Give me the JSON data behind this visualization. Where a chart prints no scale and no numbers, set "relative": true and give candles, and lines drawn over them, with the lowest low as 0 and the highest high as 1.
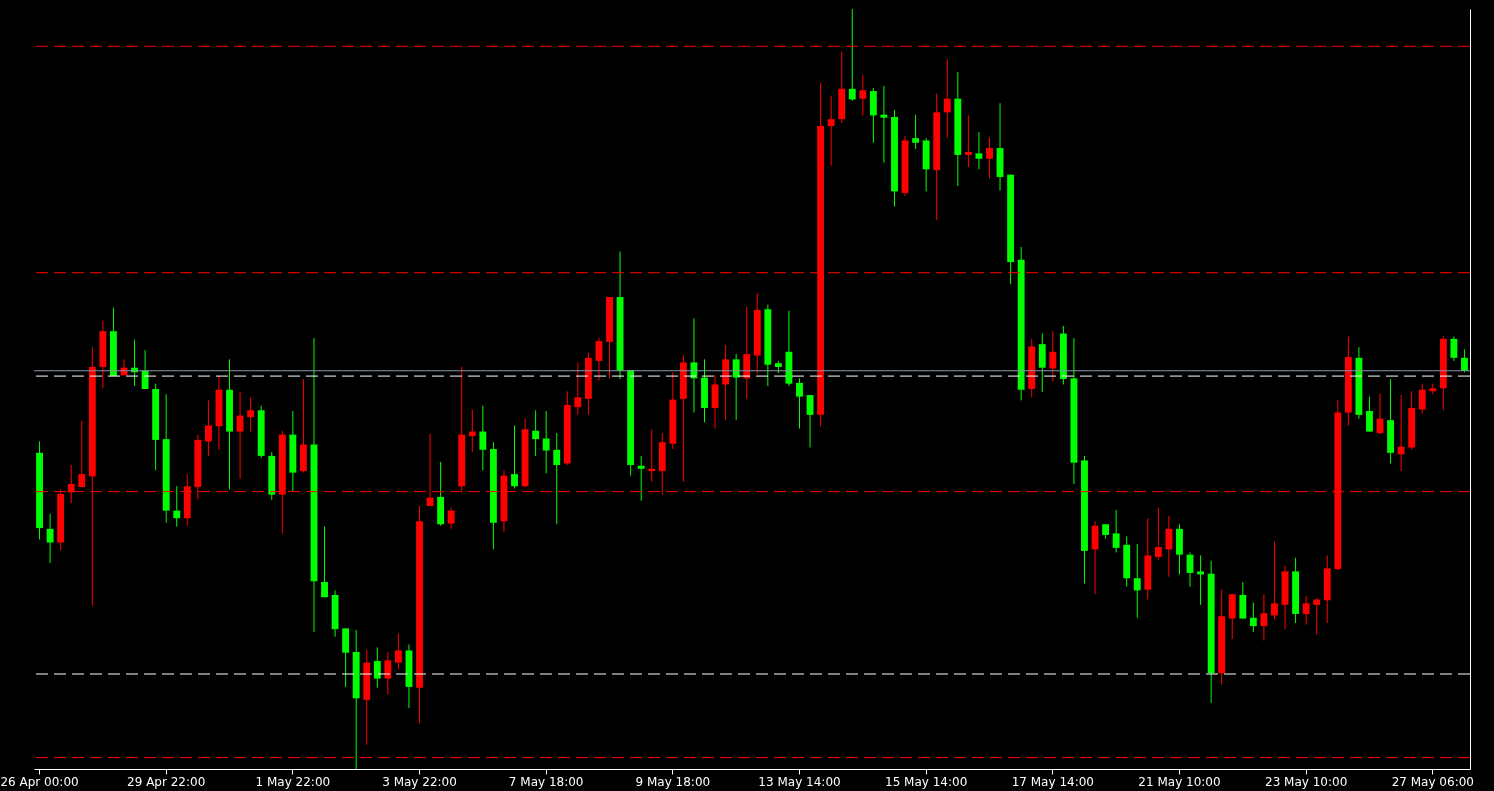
{
  "chart_data": {
    "type": "candlestick",
    "relative": true,
    "grid": false,
    "categories": [
      "26 Apr 00:00",
      null,
      null,
      null,
      null,
      null,
      null,
      null,
      null,
      null,
      null,
      null,
      "29 Apr 22:00",
      null,
      null,
      null,
      null,
      null,
      null,
      null,
      null,
      null,
      null,
      null,
      "1 May 22:00",
      null,
      null,
      null,
      null,
      null,
      null,
      null,
      null,
      null,
      null,
      null,
      "3 May 22:00",
      null,
      null,
      null,
      null,
      null,
      null,
      null,
      null,
      null,
      null,
      null,
      "7 May 18:00",
      null,
      null,
      null,
      null,
      null,
      null,
      null,
      null,
      null,
      null,
      null,
      "9 May 18:00",
      null,
      null,
      null,
      null,
      null,
      null,
      null,
      null,
      null,
      null,
      null,
      "13 May 14:00",
      null,
      null,
      null,
      null,
      null,
      null,
      null,
      null,
      null,
      null,
      null,
      "15 May 14:00",
      null,
      null,
      null,
      null,
      null,
      null,
      null,
      null,
      null,
      null,
      null,
      "17 May 14:00",
      null,
      null,
      null,
      null,
      null,
      null,
      null,
      null,
      null,
      null,
      null,
      "21 May 10:00",
      null,
      null,
      null,
      null,
      null,
      null,
      null,
      null,
      null,
      null,
      null,
      "23 May 10:00",
      null,
      null,
      null,
      null,
      null,
      null,
      null,
      null,
      null,
      null,
      null,
      "27 May 06:00",
      null,
      null,
      null
    ],
    "ohlc": [
      [
        0.416,
        0.431,
        0.302,
        0.317
      ],
      [
        0.316,
        0.336,
        0.271,
        0.298
      ],
      [
        0.298,
        0.368,
        0.288,
        0.362
      ],
      [
        0.364,
        0.4,
        0.35,
        0.375
      ],
      [
        0.371,
        0.458,
        0.371,
        0.388
      ],
      [
        0.385,
        0.555,
        0.215,
        0.529
      ],
      [
        0.529,
        0.59,
        0.501,
        0.576
      ],
      [
        0.576,
        0.607,
        0.517,
        0.517
      ],
      [
        0.518,
        0.539,
        0.518,
        0.528
      ],
      [
        0.528,
        0.565,
        0.504,
        0.522
      ],
      [
        0.524,
        0.551,
        0.5,
        0.5
      ],
      [
        0.5,
        0.507,
        0.393,
        0.433
      ],
      [
        0.434,
        0.493,
        0.324,
        0.34
      ],
      [
        0.34,
        0.372,
        0.319,
        0.33
      ],
      [
        0.33,
        0.388,
        0.32,
        0.372
      ],
      [
        0.371,
        0.44,
        0.355,
        0.433
      ],
      [
        0.431,
        0.485,
        0.412,
        0.452
      ],
      [
        0.451,
        0.517,
        0.42,
        0.499
      ],
      [
        0.499,
        0.539,
        0.368,
        0.444
      ],
      [
        0.444,
        0.496,
        0.382,
        0.465
      ],
      [
        0.463,
        0.489,
        0.444,
        0.472
      ],
      [
        0.472,
        0.478,
        0.409,
        0.412
      ],
      [
        0.412,
        0.417,
        0.354,
        0.361
      ],
      [
        0.361,
        0.445,
        0.31,
        0.44
      ],
      [
        0.44,
        0.471,
        0.365,
        0.39
      ],
      [
        0.392,
        0.513,
        0.39,
        0.427
      ],
      [
        0.427,
        0.567,
        0.18,
        0.247
      ],
      [
        0.246,
        0.319,
        0.226,
        0.226
      ],
      [
        0.229,
        0.235,
        0.174,
        0.184
      ],
      [
        0.185,
        0.185,
        0.108,
        0.153
      ],
      [
        0.154,
        0.183,
        0.0,
        0.093
      ],
      [
        0.091,
        0.157,
        0.032,
        0.14
      ],
      [
        0.142,
        0.16,
        0.107,
        0.119
      ],
      [
        0.119,
        0.154,
        0.098,
        0.143
      ],
      [
        0.14,
        0.178,
        0.131,
        0.156
      ],
      [
        0.156,
        0.164,
        0.08,
        0.108
      ],
      [
        0.107,
        0.346,
        0.06,
        0.326
      ],
      [
        0.346,
        0.441,
        0.346,
        0.357
      ],
      [
        0.358,
        0.404,
        0.32,
        0.322
      ],
      [
        0.323,
        0.344,
        0.316,
        0.34
      ],
      [
        0.372,
        0.529,
        0.365,
        0.44
      ],
      [
        0.438,
        0.473,
        0.417,
        0.444
      ],
      [
        0.444,
        0.478,
        0.393,
        0.42
      ],
      [
        0.421,
        0.43,
        0.289,
        0.324
      ],
      [
        0.326,
        0.393,
        0.312,
        0.386
      ],
      [
        0.388,
        0.452,
        0.369,
        0.372
      ],
      [
        0.372,
        0.461,
        0.371,
        0.447
      ],
      [
        0.445,
        0.472,
        0.412,
        0.434
      ],
      [
        0.435,
        0.471,
        0.389,
        0.419
      ],
      [
        0.42,
        0.442,
        0.322,
        0.4
      ],
      [
        0.402,
        0.497,
        0.4,
        0.479
      ],
      [
        0.476,
        0.535,
        0.466,
        0.489
      ],
      [
        0.487,
        0.548,
        0.466,
        0.541
      ],
      [
        0.537,
        0.567,
        0.511,
        0.563
      ],
      [
        0.562,
        0.621,
        0.514,
        0.621
      ],
      [
        0.621,
        0.681,
        0.513,
        0.524
      ],
      [
        0.525,
        0.525,
        0.386,
        0.4
      ],
      [
        0.399,
        0.412,
        0.353,
        0.395
      ],
      [
        0.392,
        0.447,
        0.378,
        0.395
      ],
      [
        0.392,
        0.442,
        0.361,
        0.43
      ],
      [
        0.428,
        0.522,
        0.421,
        0.486
      ],
      [
        0.487,
        0.545,
        0.378,
        0.535
      ],
      [
        0.535,
        0.593,
        0.469,
        0.514
      ],
      [
        0.515,
        0.539,
        0.456,
        0.475
      ],
      [
        0.475,
        0.518,
        0.448,
        0.506
      ],
      [
        0.506,
        0.558,
        0.459,
        0.539
      ],
      [
        0.539,
        0.546,
        0.459,
        0.515
      ],
      [
        0.514,
        0.608,
        0.487,
        0.546
      ],
      [
        0.544,
        0.626,
        0.52,
        0.604
      ],
      [
        0.605,
        0.611,
        0.504,
        0.532
      ],
      [
        0.534,
        0.537,
        0.521,
        0.529
      ],
      [
        0.549,
        0.603,
        0.504,
        0.507
      ],
      [
        0.508,
        0.514,
        0.448,
        0.49
      ],
      [
        0.492,
        0.492,
        0.423,
        0.466
      ],
      [
        0.466,
        0.903,
        0.451,
        0.846
      ],
      [
        0.846,
        0.886,
        0.794,
        0.855
      ],
      [
        0.855,
        0.944,
        0.85,
        0.895
      ],
      [
        0.895,
        1.0,
        0.879,
        0.881
      ],
      [
        0.882,
        0.913,
        0.86,
        0.893
      ],
      [
        0.892,
        0.896,
        0.824,
        0.86
      ],
      [
        0.861,
        0.899,
        0.798,
        0.857
      ],
      [
        0.858,
        0.867,
        0.74,
        0.76
      ],
      [
        0.758,
        0.833,
        0.754,
        0.827
      ],
      [
        0.83,
        0.861,
        0.816,
        0.824
      ],
      [
        0.827,
        0.83,
        0.76,
        0.789
      ],
      [
        0.788,
        0.889,
        0.722,
        0.864
      ],
      [
        0.864,
        0.934,
        0.83,
        0.882
      ],
      [
        0.882,
        0.917,
        0.767,
        0.808
      ],
      [
        0.808,
        0.86,
        0.792,
        0.812
      ],
      [
        0.81,
        0.838,
        0.789,
        0.803
      ],
      [
        0.803,
        0.831,
        0.777,
        0.817
      ],
      [
        0.817,
        0.876,
        0.761,
        0.779
      ],
      [
        0.782,
        0.782,
        0.638,
        0.667
      ],
      [
        0.67,
        0.687,
        0.485,
        0.499
      ],
      [
        0.5,
        0.566,
        0.489,
        0.556
      ],
      [
        0.559,
        0.573,
        0.496,
        0.528
      ],
      [
        0.527,
        0.576,
        0.51,
        0.549
      ],
      [
        0.573,
        0.583,
        0.506,
        0.513
      ],
      [
        0.514,
        0.567,
        0.375,
        0.403
      ],
      [
        0.406,
        0.412,
        0.244,
        0.287
      ],
      [
        0.289,
        0.326,
        0.23,
        0.32
      ],
      [
        0.322,
        0.322,
        0.303,
        0.308
      ],
      [
        0.31,
        0.341,
        0.285,
        0.291
      ],
      [
        0.295,
        0.306,
        0.24,
        0.251
      ],
      [
        0.251,
        0.296,
        0.199,
        0.235
      ],
      [
        0.236,
        0.33,
        0.223,
        0.281
      ],
      [
        0.279,
        0.344,
        0.275,
        0.292
      ],
      [
        0.289,
        0.333,
        0.253,
        0.316
      ],
      [
        0.316,
        0.322,
        0.256,
        0.282
      ],
      [
        0.282,
        0.285,
        0.24,
        0.258
      ],
      [
        0.26,
        0.281,
        0.216,
        0.256
      ],
      [
        0.257,
        0.274,
        0.087,
        0.126
      ],
      [
        0.126,
        0.236,
        0.111,
        0.201
      ],
      [
        0.198,
        0.23,
        0.171,
        0.23
      ],
      [
        0.229,
        0.246,
        0.198,
        0.198
      ],
      [
        0.199,
        0.219,
        0.18,
        0.188
      ],
      [
        0.188,
        0.23,
        0.169,
        0.205
      ],
      [
        0.202,
        0.299,
        0.197,
        0.218
      ],
      [
        0.216,
        0.268,
        0.184,
        0.26
      ],
      [
        0.26,
        0.278,
        0.192,
        0.204
      ],
      [
        0.204,
        0.228,
        0.19,
        0.218
      ],
      [
        0.216,
        0.225,
        0.177,
        0.223
      ],
      [
        0.222,
        0.281,
        0.192,
        0.264
      ],
      [
        0.263,
        0.485,
        0.261,
        0.469
      ],
      [
        0.469,
        0.569,
        0.452,
        0.542
      ],
      [
        0.541,
        0.555,
        0.461,
        0.466
      ],
      [
        0.471,
        0.49,
        0.444,
        0.444
      ],
      [
        0.442,
        0.494,
        0.441,
        0.461
      ],
      [
        0.459,
        0.513,
        0.402,
        0.416
      ],
      [
        0.414,
        0.492,
        0.392,
        0.424
      ],
      [
        0.423,
        0.497,
        0.42,
        0.475
      ],
      [
        0.473,
        0.507,
        0.468,
        0.499
      ],
      [
        0.497,
        0.507,
        0.493,
        0.501
      ],
      [
        0.501,
        0.57,
        0.472,
        0.566
      ],
      [
        0.566,
        0.569,
        0.537,
        0.541
      ],
      [
        0.541,
        0.552,
        0.522,
        0.524
      ]
    ],
    "colors": [
      "#00ff00",
      "#00ff00",
      "#ff0000",
      "#ff0000",
      "#ff0000",
      "#ff0000",
      "#ff0000",
      "#00ff00",
      "#ff0000",
      "#00ff00",
      "#00ff00",
      "#00ff00",
      "#00ff00",
      "#00ff00",
      "#ff0000",
      "#ff0000",
      "#ff0000",
      "#ff0000",
      "#00ff00",
      "#ff0000",
      "#ff0000",
      "#00ff00",
      "#00ff00",
      "#ff0000",
      "#00ff00",
      "#ff0000",
      "#00ff00",
      "#00ff00",
      "#00ff00",
      "#00ff00",
      "#00ff00",
      "#ff0000",
      "#00ff00",
      "#ff0000",
      "#ff0000",
      "#00ff00",
      "#ff0000",
      "#ff0000",
      "#00ff00",
      "#ff0000",
      "#ff0000",
      "#ff0000",
      "#00ff00",
      "#00ff00",
      "#ff0000",
      "#00ff00",
      "#ff0000",
      "#00ff00",
      "#00ff00",
      "#00ff00",
      "#ff0000",
      "#ff0000",
      "#ff0000",
      "#ff0000",
      "#ff0000",
      "#00ff00",
      "#00ff00",
      "#00ff00",
      "#ff0000",
      "#ff0000",
      "#ff0000",
      "#ff0000",
      "#00ff00",
      "#00ff00",
      "#ff0000",
      "#ff0000",
      "#00ff00",
      "#ff0000",
      "#ff0000",
      "#00ff00",
      "#00ff00",
      "#00ff00",
      "#00ff00",
      "#00ff00",
      "#ff0000",
      "#ff0000",
      "#ff0000",
      "#00ff00",
      "#ff0000",
      "#00ff00",
      "#00ff00",
      "#00ff00",
      "#ff0000",
      "#00ff00",
      "#00ff00",
      "#ff0000",
      "#ff0000",
      "#00ff00",
      "#ff0000",
      "#00ff00",
      "#ff0000",
      "#00ff00",
      "#00ff00",
      "#00ff00",
      "#ff0000",
      "#00ff00",
      "#ff0000",
      "#00ff00",
      "#00ff00",
      "#00ff00",
      "#ff0000",
      "#00ff00",
      "#00ff00",
      "#00ff00",
      "#00ff00",
      "#ff0000",
      "#ff0000",
      "#ff0000",
      "#00ff00",
      "#00ff00",
      "#00ff00",
      "#00ff00",
      "#ff0000",
      "#ff0000",
      "#00ff00",
      "#00ff00",
      "#ff0000",
      "#ff0000",
      "#ff0000",
      "#00ff00",
      "#ff0000",
      "#ff0000",
      "#ff0000",
      "#ff0000",
      "#ff0000",
      "#00ff00",
      "#00ff00",
      "#ff0000",
      "#00ff00",
      "#ff0000",
      "#ff0000",
      "#ff0000",
      "#ff0000",
      "#ff0000",
      "#00ff00",
      "#00ff00"
    ],
    "ref_lines": [
      {
        "axis": "y",
        "value": 0.951,
        "color": "#ff0000",
        "line_style": "dashed"
      },
      {
        "axis": "y",
        "value": 0.653,
        "color": "#ff0000",
        "line_style": "dashed"
      },
      {
        "axis": "y",
        "value": 0.524,
        "color": "#8a96a8",
        "line_style": "solid"
      },
      {
        "axis": "y",
        "value": 0.517,
        "color": "#ffffff",
        "line_style": "dashed"
      },
      {
        "axis": "y",
        "value": 0.365,
        "color": "#ff0000",
        "line_style": "dashed"
      },
      {
        "axis": "y",
        "value": 0.125,
        "color": "#ffffff",
        "line_style": "dashed"
      },
      {
        "axis": "y",
        "value": 0.015,
        "color": "#ff0000",
        "line_style": "dashed"
      }
    ]
  }
}
